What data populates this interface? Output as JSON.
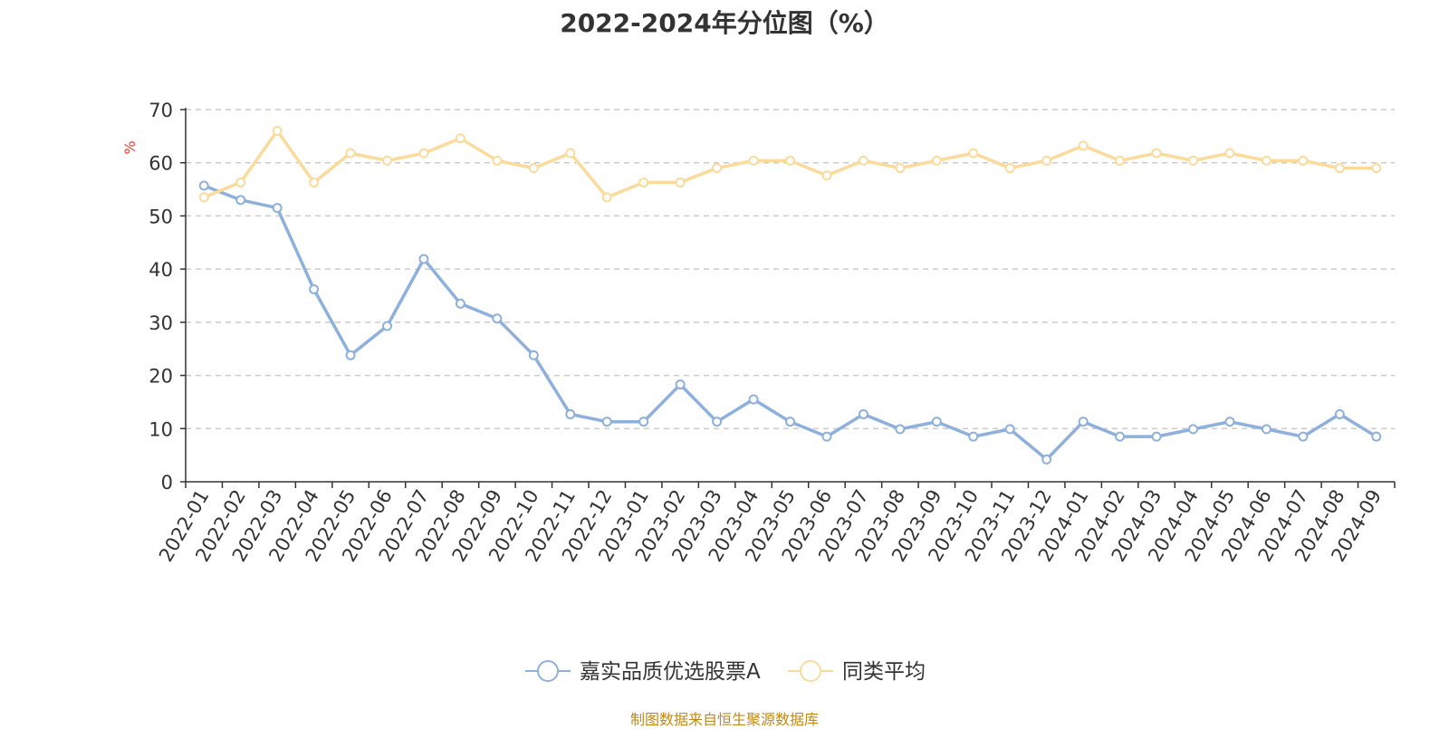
{
  "title": "2022-2024年分位图（%）",
  "source": "制图数据来自恒生聚源数据库",
  "colors": {
    "series_0": "#8eb0dc",
    "series_1": "#fbdb9c",
    "ylabel": "#e8392b",
    "grid": "#cccccc",
    "axis": "#333333"
  },
  "chart_data": {
    "type": "line",
    "title": "2022-2024年分位图（%）",
    "xlabel": "",
    "ylabel": "%",
    "ylim": [
      0,
      70
    ],
    "yticks": [
      0,
      10,
      20,
      30,
      40,
      50,
      60,
      70
    ],
    "grid": "horizontal dashed",
    "legend": "bottom-center",
    "categories": [
      "2022-01",
      "2022-02",
      "2022-03",
      "2022-04",
      "2022-05",
      "2022-06",
      "2022-07",
      "2022-08",
      "2022-09",
      "2022-10",
      "2022-11",
      "2022-12",
      "2023-01",
      "2023-02",
      "2023-03",
      "2023-04",
      "2023-05",
      "2023-06",
      "2023-07",
      "2023-08",
      "2023-09",
      "2023-10",
      "2023-11",
      "2023-12",
      "2024-01",
      "2024-02",
      "2024-03",
      "2024-04",
      "2024-05",
      "2024-06",
      "2024-07",
      "2024-08",
      "2024-09"
    ],
    "series": [
      {
        "name": "嘉实品质优选股票A",
        "values": [
          55.7,
          53.0,
          51.5,
          36.2,
          23.8,
          29.3,
          41.9,
          33.5,
          30.7,
          23.8,
          12.7,
          11.3,
          11.3,
          18.3,
          11.3,
          15.5,
          11.3,
          8.5,
          12.7,
          9.9,
          11.3,
          8.5,
          9.9,
          4.2,
          11.3,
          8.5,
          8.5,
          9.9,
          11.3,
          9.9,
          8.5,
          12.7,
          8.5
        ]
      },
      {
        "name": "同类平均",
        "values": [
          53.5,
          56.3,
          66.0,
          56.3,
          61.8,
          60.4,
          61.8,
          64.6,
          60.4,
          59.0,
          61.8,
          53.5,
          56.3,
          56.3,
          59.0,
          60.4,
          60.4,
          57.6,
          60.4,
          59.0,
          60.4,
          61.8,
          59.0,
          60.4,
          63.2,
          60.4,
          61.8,
          60.4,
          61.8,
          60.4,
          60.4,
          59.0,
          59.0
        ]
      }
    ]
  }
}
